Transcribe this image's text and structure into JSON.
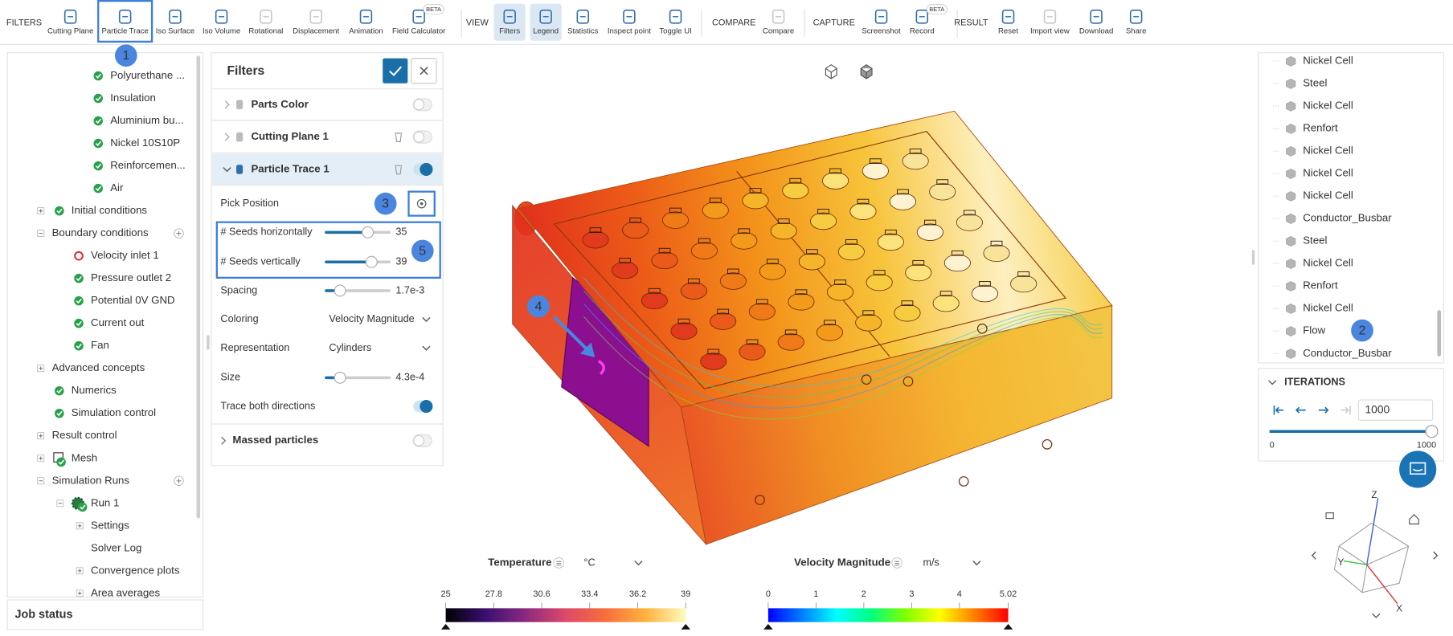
{
  "toolbar": {
    "groups": [
      {
        "label": "FILTERS",
        "items": [
          {
            "label": "Cutting Plane"
          },
          {
            "label": "Particle Trace"
          },
          {
            "label": "Iso Surface"
          },
          {
            "label": "Iso Volume"
          },
          {
            "label": "Rotational",
            "disabled": true
          },
          {
            "label": "Displacement",
            "disabled": true
          },
          {
            "label": "Animation"
          },
          {
            "label": "Field Calculator",
            "badge": "BETA"
          }
        ]
      },
      {
        "label": "VIEW",
        "items": [
          {
            "label": "Filters",
            "active": true
          },
          {
            "label": "Legend",
            "active": true
          },
          {
            "label": "Statistics"
          },
          {
            "label": "Inspect point"
          },
          {
            "label": "Toggle UI"
          }
        ]
      },
      {
        "label": "COMPARE",
        "items": [
          {
            "label": "Compare",
            "disabled": true
          }
        ]
      },
      {
        "label": "CAPTURE",
        "items": [
          {
            "label": "Screenshot"
          },
          {
            "label": "Record",
            "badge": "BETA"
          }
        ]
      },
      {
        "label": "RESULT",
        "items": [
          {
            "label": "Reset"
          },
          {
            "label": "Import view",
            "disabled": true
          },
          {
            "label": "Download"
          },
          {
            "label": "Share"
          }
        ]
      }
    ]
  },
  "left_tree": {
    "items": [
      "Polyurethane ...",
      "Insulation",
      "Aluminium bu...",
      "Nickel 10S10P",
      "Reinforcemen...",
      "Air",
      "Initial conditions",
      "Boundary conditions",
      "Velocity inlet 1",
      "Pressure outlet 2",
      "Potential 0V GND",
      "Current out",
      "Fan",
      "Advanced concepts",
      "Numerics",
      "Simulation control",
      "Result control",
      "Mesh",
      "Simulation Runs",
      "Run 1",
      "Settings",
      "Solver Log",
      "Convergence plots",
      "Area averages"
    ],
    "job_status": "Job status"
  },
  "filters_panel": {
    "title": "Filters",
    "filters": [
      {
        "label": "Parts Color",
        "on": false
      },
      {
        "label": "Cutting Plane 1",
        "on": false
      },
      {
        "label": "Particle Trace 1",
        "on": true
      }
    ],
    "settings": [
      {
        "label": "Pick Position"
      },
      {
        "label": "# Seeds horizontally",
        "value": 35
      },
      {
        "label": "# Seeds vertically",
        "value": 39
      },
      {
        "label": "Spacing",
        "value": "1.7e-3"
      },
      {
        "label": "Coloring",
        "value": "Velocity Magnitude"
      },
      {
        "label": "Representation",
        "value": "Cylinders"
      },
      {
        "label": "Size",
        "value": "4.3e-4"
      },
      {
        "label": "Trace both directions",
        "on": true
      }
    ],
    "section": {
      "label": "Massed particles",
      "on": false
    }
  },
  "parts_list": {
    "items": [
      "Nickel Cell",
      "Steel",
      "Nickel Cell",
      "Renfort",
      "Nickel Cell",
      "Nickel Cell",
      "Nickel Cell",
      "Conductor_Busbar",
      "Steel",
      "Nickel Cell",
      "Renfort",
      "Nickel Cell",
      "Flow",
      "Conductor_Busbar"
    ]
  },
  "iterations": {
    "title": "ITERATIONS",
    "value": 1000,
    "min": 0,
    "max": 1000
  },
  "legends": [
    {
      "title": "Temperature",
      "unit": "°C",
      "ticks": [
        25,
        27.8,
        30.6,
        33.4,
        36.2,
        39
      ]
    },
    {
      "title": "Velocity Magnitude",
      "unit": "m/s",
      "ticks": [
        0,
        1,
        2,
        3,
        4,
        5.02
      ]
    }
  ],
  "axes_widget": {
    "labels": [
      "Z",
      "Y",
      "X"
    ]
  },
  "annotations": [
    "1",
    "2",
    "3",
    "4",
    "5"
  ]
}
